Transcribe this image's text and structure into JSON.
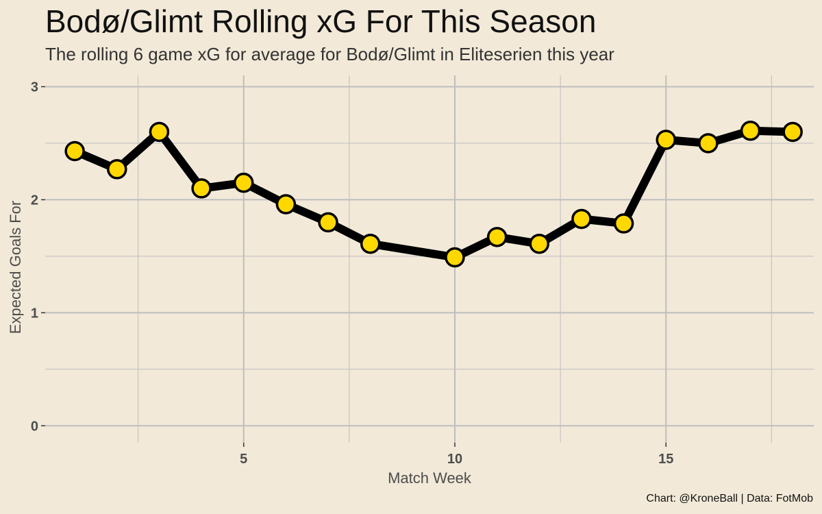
{
  "title": "Bodø/Glimt Rolling xG For This Season",
  "subtitle": "The rolling 6 game xG for average for Bodø/Glimt in Eliteserien this year",
  "caption": "Chart: @KroneBall | Data: FotMob",
  "colors": {
    "background": "#F2E9D8",
    "line": "#000000",
    "point_fill": "#FFD800",
    "point_stroke": "#000000",
    "grid": "#BEBEBE"
  },
  "chart_data": {
    "type": "line",
    "title": "Bodø/Glimt Rolling xG For This Season",
    "subtitle": "The rolling 6 game xG for average for Bodø/Glimt in Eliteserien this year",
    "xlabel": "Match Week",
    "ylabel": "Expected Goals For",
    "xlim": [
      0.3,
      18.5
    ],
    "ylim": [
      -0.15,
      3.1
    ],
    "x_ticks": [
      5,
      10,
      15
    ],
    "y_ticks": [
      0,
      1,
      2,
      3
    ],
    "grid": true,
    "legend": "none",
    "series": [
      {
        "x": [
          1,
          2,
          3,
          4,
          5,
          6,
          7,
          8,
          10,
          11,
          12,
          13,
          14,
          15,
          16,
          17,
          18
        ],
        "values": [
          2.43,
          2.27,
          2.6,
          2.1,
          2.15,
          1.96,
          1.8,
          1.61,
          1.49,
          1.67,
          1.61,
          1.83,
          1.79,
          2.53,
          2.5,
          2.61,
          2.6
        ]
      }
    ]
  }
}
